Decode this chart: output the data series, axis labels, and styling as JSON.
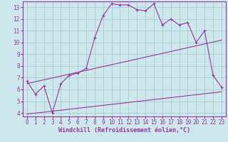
{
  "xlabel": "Windchill (Refroidissement éolien,°C)",
  "bg_color": "#cce8ec",
  "grid_color": "#aacccc",
  "line_color": "#993399",
  "spine_color": "#993399",
  "xlim": [
    -0.5,
    23.5
  ],
  "ylim": [
    3.7,
    13.5
  ],
  "xticks": [
    0,
    1,
    2,
    3,
    4,
    5,
    6,
    7,
    8,
    9,
    10,
    11,
    12,
    13,
    14,
    15,
    16,
    17,
    18,
    19,
    20,
    21,
    22,
    23
  ],
  "yticks": [
    4,
    5,
    6,
    7,
    8,
    9,
    10,
    11,
    12,
    13
  ],
  "line1_x": [
    0,
    1,
    2,
    3,
    4,
    5,
    6,
    7,
    8,
    9,
    10,
    11,
    12,
    13,
    14,
    15,
    16,
    17,
    18,
    19,
    20,
    21,
    22,
    23
  ],
  "line1_y": [
    6.7,
    5.6,
    6.3,
    4.0,
    6.5,
    7.2,
    7.4,
    7.8,
    10.4,
    12.3,
    13.3,
    13.2,
    13.2,
    12.8,
    12.7,
    13.3,
    11.5,
    12.0,
    11.5,
    11.7,
    10.0,
    11.0,
    7.2,
    6.2
  ],
  "line2_x": [
    0,
    23
  ],
  "line2_y": [
    6.5,
    10.2
  ],
  "line3_x": [
    0,
    23
  ],
  "line3_y": [
    3.9,
    5.8
  ],
  "tick_fontsize": 5.5,
  "xlabel_fontsize": 6.0
}
